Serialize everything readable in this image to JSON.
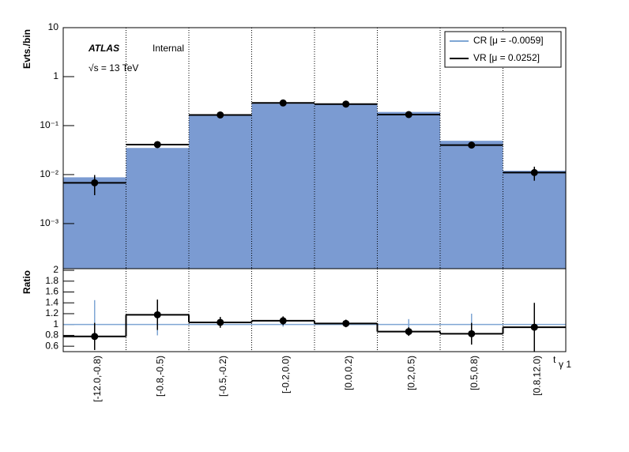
{
  "chart_data": [
    {
      "type": "bar",
      "annotations": [
        "ATLAS",
        "Internal",
        "√s = 13 TeV"
      ],
      "y_label": "Evts./bin",
      "log_y": true,
      "ylim": [
        0.00012,
        10
      ],
      "yticks": [
        10,
        1,
        {
          "value": 0.1,
          "label": "10⁻¹"
        },
        {
          "value": 0.01,
          "label": "10⁻²"
        },
        {
          "value": 0.001,
          "label": "10⁻³"
        }
      ],
      "legend": "top-right",
      "series": [
        {
          "name": "CR [μ = -0.0059]",
          "color": "#7b9bd2",
          "values": [
            0.0088,
            0.035,
            0.16,
            0.28,
            0.27,
            0.19,
            0.049,
            0.012
          ]
        },
        {
          "name": "VR [μ = 0.0252]",
          "color": "#000000",
          "values": [
            0.0068,
            0.041,
            0.165,
            0.29,
            0.275,
            0.168,
            0.04,
            0.011
          ],
          "errors": [
            0.003,
            0.006,
            0.015,
            0.02,
            0.02,
            0.015,
            0.006,
            0.0035
          ]
        }
      ]
    },
    {
      "type": "step",
      "y_label": "Ratio",
      "x_label": "t",
      "x_label_subscript": "γ 1",
      "categories": [
        "[-12.0,-0.8)",
        "[-0.8,-0.5)",
        "[-0.5,-0.2)",
        "[-0.2,0.0)",
        "[0.0,0.2)",
        "[0.2,0.5)",
        "[0.5,0.8)",
        "[0.8,12.0)"
      ],
      "ylim": [
        0.5,
        2.03
      ],
      "yticks": [
        2,
        1.8,
        1.6,
        1.4,
        1.2,
        1,
        0.8,
        0.6
      ],
      "series": [
        {
          "name": "CR",
          "color": "#7fa6d4",
          "values": [
            1,
            1,
            1,
            1,
            1,
            1,
            1,
            1
          ],
          "errors": [
            0.45,
            0.2,
            0.05,
            0.04,
            0.04,
            0.1,
            0.2,
            0.05
          ]
        },
        {
          "name": "VR",
          "color": "#000000",
          "values": [
            0.78,
            1.18,
            1.04,
            1.07,
            1.02,
            0.87,
            0.83,
            0.95
          ],
          "errors": [
            0.25,
            0.28,
            0.1,
            0.08,
            0.07,
            0.08,
            0.2,
            0.45
          ]
        }
      ]
    }
  ]
}
